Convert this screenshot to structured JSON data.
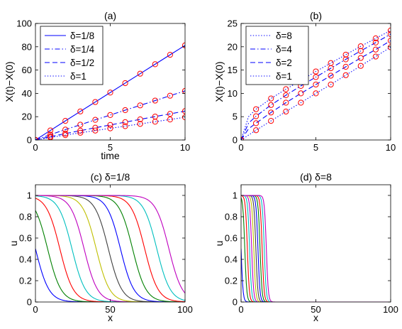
{
  "chart_data": [
    {
      "type": "line",
      "panel": "a",
      "title": "(a)",
      "xlabel": "time",
      "ylabel": "X(t)−X(0)",
      "xlim": [
        0,
        10
      ],
      "ylim": [
        0,
        100
      ],
      "xticks": [
        0,
        5,
        10
      ],
      "yticks": [
        0,
        20,
        40,
        60,
        80,
        100
      ],
      "legend_position": "top-left",
      "markers": {
        "symbol": "circle",
        "color": "#ff0000",
        "x": [
          0,
          1,
          2,
          3,
          4,
          5,
          6,
          7,
          8,
          9,
          10
        ]
      },
      "series": [
        {
          "name": "δ=1/8",
          "style": "solid",
          "color": "#0000ff",
          "x": [
            0,
            1,
            2,
            3,
            4,
            5,
            6,
            7,
            8,
            9,
            10
          ],
          "values": [
            0,
            8.2,
            16.4,
            24.5,
            32.6,
            40.7,
            48.8,
            56.9,
            65.0,
            73.1,
            81.2
          ]
        },
        {
          "name": "δ=1/4",
          "style": "dashdot",
          "color": "#0000ff",
          "x": [
            0,
            1,
            2,
            3,
            4,
            5,
            6,
            7,
            8,
            9,
            10
          ],
          "values": [
            0,
            4.6,
            8.9,
            13.1,
            17.3,
            21.4,
            25.6,
            29.7,
            33.8,
            38.0,
            42.1
          ]
        },
        {
          "name": "δ=1/2",
          "style": "dashed",
          "color": "#0000ff",
          "x": [
            0,
            1,
            2,
            3,
            4,
            5,
            6,
            7,
            8,
            9,
            10
          ],
          "values": [
            0,
            2.9,
            5.5,
            8.0,
            10.5,
            12.9,
            15.3,
            17.7,
            20.1,
            22.4,
            24.8
          ]
        },
        {
          "name": "δ=1",
          "style": "dotted",
          "color": "#0000ff",
          "x": [
            0,
            1,
            2,
            3,
            4,
            5,
            6,
            7,
            8,
            9,
            10
          ],
          "values": [
            0,
            2.2,
            4.2,
            6.2,
            8.1,
            10.0,
            11.9,
            13.8,
            15.7,
            17.6,
            19.5
          ]
        }
      ]
    },
    {
      "type": "line",
      "panel": "b",
      "title": "(b)",
      "xlabel": "",
      "ylabel": "X(t)−X(0)",
      "xlim": [
        0,
        10
      ],
      "ylim": [
        0,
        25
      ],
      "xticks": [
        0,
        5,
        10
      ],
      "yticks": [
        0,
        5,
        10,
        15,
        20,
        25
      ],
      "legend_position": "top-left",
      "markers": {
        "symbol": "circle",
        "color": "#ff0000",
        "x": [
          0,
          1,
          2,
          3,
          4,
          5,
          6,
          7,
          8,
          9,
          10
        ]
      },
      "series": [
        {
          "name": "δ=8",
          "style": "dotted",
          "color": "#0000ff",
          "x": [
            0,
            0.5,
            1,
            2,
            3,
            4,
            5,
            6,
            7,
            8,
            9,
            10
          ],
          "values": [
            0,
            5.0,
            6.6,
            8.9,
            10.9,
            12.8,
            14.7,
            16.5,
            18.3,
            20.1,
            21.8,
            23.5
          ]
        },
        {
          "name": "δ=4",
          "style": "dashdot",
          "color": "#0000ff",
          "x": [
            0,
            0.5,
            1,
            2,
            3,
            4,
            5,
            6,
            7,
            8,
            9,
            10
          ],
          "values": [
            0,
            3.6,
            5.1,
            7.5,
            9.6,
            11.6,
            13.5,
            15.4,
            17.3,
            19.1,
            20.9,
            22.7
          ]
        },
        {
          "name": "δ=2",
          "style": "dashed",
          "color": "#0000ff",
          "x": [
            0,
            0.5,
            1,
            2,
            3,
            4,
            5,
            6,
            7,
            8,
            9,
            10
          ],
          "values": [
            0,
            2.4,
            3.6,
            5.9,
            8.0,
            10.0,
            11.9,
            13.8,
            15.7,
            17.6,
            19.4,
            21.3
          ]
        },
        {
          "name": "δ=1",
          "style": "dotted",
          "color": "#0000ff",
          "x": [
            0,
            1,
            2,
            3,
            4,
            5,
            6,
            7,
            8,
            9,
            10
          ],
          "values": [
            0,
            2.1,
            4.1,
            6.1,
            8.0,
            10.0,
            11.9,
            13.9,
            15.9,
            17.9,
            19.9
          ]
        }
      ]
    },
    {
      "type": "line",
      "panel": "c",
      "title": "(c) δ=1/8",
      "xlabel": "x",
      "ylabel": "u",
      "xlim": [
        0,
        100
      ],
      "ylim": [
        0,
        1.1
      ],
      "xticks": [
        0,
        50,
        100
      ],
      "yticks": [
        0,
        0.2,
        0.4,
        0.6,
        0.8,
        1
      ],
      "profile_width": 9,
      "series": [
        {
          "center": 0,
          "color": "#0000ff"
        },
        {
          "center": 8.1,
          "color": "#008000"
        },
        {
          "center": 16.3,
          "color": "#ff0000"
        },
        {
          "center": 24.4,
          "color": "#00bfbf"
        },
        {
          "center": 32.5,
          "color": "#bf00bf"
        },
        {
          "center": 40.6,
          "color": "#bfbf00"
        },
        {
          "center": 48.7,
          "color": "#404040"
        },
        {
          "center": 56.8,
          "color": "#0000ff"
        },
        {
          "center": 64.9,
          "color": "#008000"
        },
        {
          "center": 73.0,
          "color": "#ff0000"
        },
        {
          "center": 81.1,
          "color": "#00bfbf"
        },
        {
          "center": 89.2,
          "color": "#bf00bf"
        }
      ]
    },
    {
      "type": "line",
      "panel": "d",
      "title": "(d) δ=8",
      "xlabel": "x",
      "ylabel": "u",
      "xlim": [
        0,
        100
      ],
      "ylim": [
        0,
        1.1
      ],
      "xticks": [
        0,
        50,
        100
      ],
      "yticks": [
        0,
        0.2,
        0.4,
        0.6,
        0.8,
        1
      ],
      "profile_width": 1.3,
      "series": [
        {
          "center": 0,
          "color": "#0000ff"
        },
        {
          "center": 2.5,
          "color": "#008000"
        },
        {
          "center": 4.2,
          "color": "#ff0000"
        },
        {
          "center": 5.7,
          "color": "#00bfbf"
        },
        {
          "center": 7.1,
          "color": "#bf00bf"
        },
        {
          "center": 8.5,
          "color": "#bfbf00"
        },
        {
          "center": 9.9,
          "color": "#404040"
        },
        {
          "center": 11.3,
          "color": "#0000ff"
        },
        {
          "center": 12.7,
          "color": "#008000"
        },
        {
          "center": 14.1,
          "color": "#ff0000"
        },
        {
          "center": 15.5,
          "color": "#00bfbf"
        },
        {
          "center": 16.9,
          "color": "#bf00bf"
        }
      ]
    }
  ]
}
